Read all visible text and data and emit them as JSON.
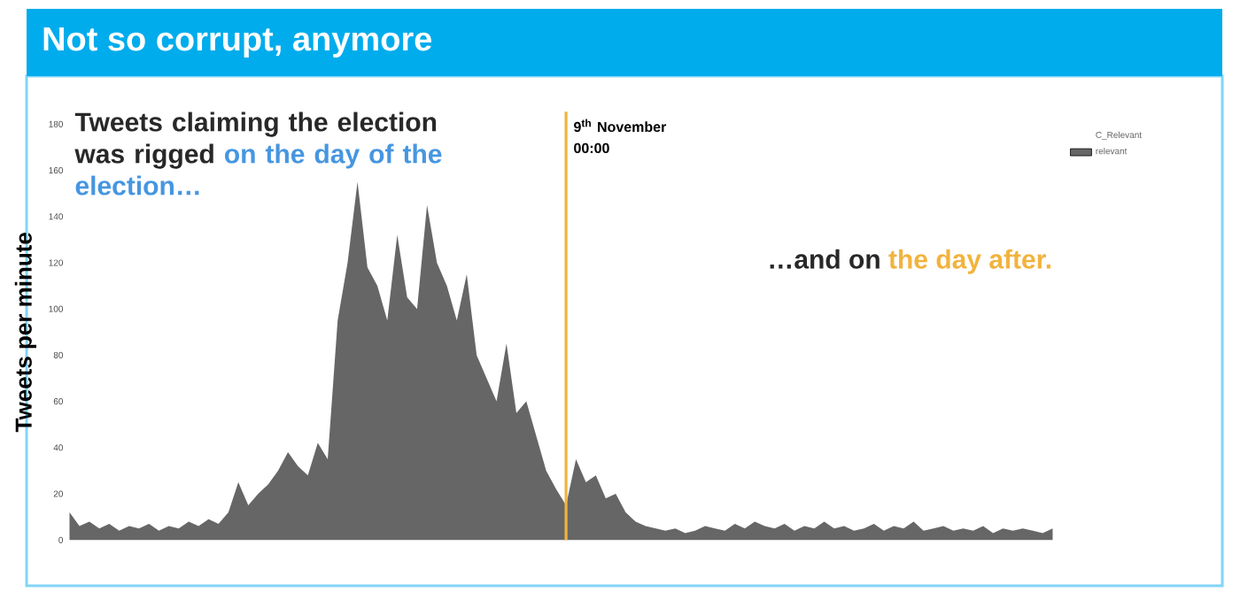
{
  "chart_data": {
    "type": "area",
    "title": "Not so corrupt, anymore",
    "ylabel": "Tweets per minute",
    "legend_title": "C_Relevant",
    "legend": "top right",
    "categories": [
      null,
      null,
      null,
      null,
      null,
      null,
      null,
      null,
      null,
      null,
      null,
      null,
      null,
      null,
      null,
      null,
      null,
      null,
      null,
      null,
      null,
      null,
      null,
      null,
      null,
      null,
      null,
      null,
      null,
      null,
      null,
      null,
      null,
      null,
      null,
      null,
      null,
      null,
      null,
      null,
      null,
      null,
      null,
      null,
      null,
      null,
      null,
      null,
      null,
      null,
      null,
      null,
      null,
      null,
      null,
      null,
      null,
      null,
      null,
      null,
      null,
      null,
      null,
      null,
      null,
      null,
      null,
      null,
      null,
      null,
      null,
      null,
      null,
      null,
      null,
      null,
      null,
      null,
      null,
      null,
      null,
      null,
      null,
      null,
      null,
      null,
      null,
      null,
      null,
      null,
      null,
      null,
      null,
      null,
      null,
      null,
      null,
      null,
      null,
      null
    ],
    "series": [
      {
        "name": "relevant",
        "color": "#666666",
        "values": [
          12,
          6,
          8,
          5,
          7,
          4,
          6,
          5,
          7,
          4,
          6,
          5,
          8,
          6,
          9,
          7,
          12,
          25,
          15,
          20,
          24,
          30,
          38,
          32,
          28,
          42,
          35,
          95,
          120,
          155,
          118,
          110,
          95,
          132,
          105,
          100,
          145,
          120,
          110,
          95,
          115,
          80,
          70,
          60,
          85,
          55,
          60,
          45,
          30,
          22,
          15,
          35,
          25,
          28,
          18,
          20,
          12,
          8,
          6,
          5,
          4,
          5,
          3,
          4,
          6,
          5,
          4,
          7,
          5,
          8,
          6,
          5,
          7,
          4,
          6,
          5,
          8,
          5,
          6,
          4,
          5,
          7,
          4,
          6,
          5,
          8,
          4,
          5,
          6,
          4,
          5,
          4,
          6,
          3,
          5,
          4,
          5,
          4,
          3,
          5
        ]
      }
    ],
    "ylim": [
      0,
      180
    ],
    "yticks": [
      0,
      20,
      40,
      60,
      80,
      100,
      120,
      140,
      160,
      180
    ],
    "annotations": [
      "Tweets claiming the election was rigged",
      "on the day of the election…",
      "…and on",
      "the day after.",
      "9$^{th}$ November 00:00"
    ]
  }
}
